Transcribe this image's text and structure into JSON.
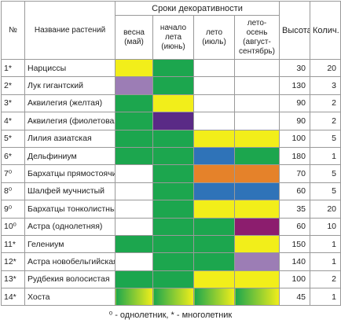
{
  "table": {
    "headers": {
      "num": "№",
      "name": "Название растений",
      "period": "Сроки декоративности",
      "height": "Высота",
      "count": "Колич.",
      "periods": [
        "весна\n(май)",
        "начало\nлета\n(июнь)",
        "лето\n(июль)",
        "лето-осень\n(август-\nсентябрь)"
      ]
    },
    "rows": [
      {
        "num": "1*",
        "name": "Нарциссы",
        "colors": [
          "#f2ee1a",
          "#1ca64e",
          null,
          null
        ],
        "height": "30",
        "count": "20"
      },
      {
        "num": "2*",
        "name": "Лук гигантский",
        "colors": [
          "#9c7db5",
          "#1ca64e",
          null,
          null
        ],
        "height": "130",
        "count": "3"
      },
      {
        "num": "3*",
        "name": "Аквилегия (желтая)",
        "colors": [
          "#1ca64e",
          "#f2ee1a",
          null,
          null
        ],
        "height": "90",
        "count": "2"
      },
      {
        "num": "4*",
        "name": "Аквилегия (фиолетовая)",
        "colors": [
          "#1ca64e",
          "#5a2a86",
          null,
          null
        ],
        "height": "90",
        "count": "2"
      },
      {
        "num": "5*",
        "name": "Лилия азиатская",
        "colors": [
          "#1ca64e",
          "#1ca64e",
          "#f2ee1a",
          "#f2ee1a"
        ],
        "height": "100",
        "count": "5"
      },
      {
        "num": "6*",
        "name": "Дельфиниум",
        "colors": [
          "#1ca64e",
          "#1ca64e",
          "#2f73b8",
          "#1ca64e"
        ],
        "height": "180",
        "count": "1"
      },
      {
        "num": "7⁰",
        "name": "Бархатцы прямостоячие",
        "colors": [
          null,
          "#1ca64e",
          "#e5822a",
          "#e5822a"
        ],
        "height": "70",
        "count": "5"
      },
      {
        "num": "8⁰",
        "name": "Шалфей мучнистый",
        "colors": [
          null,
          "#1ca64e",
          "#2f73b8",
          "#2f73b8"
        ],
        "height": "60",
        "count": "5"
      },
      {
        "num": "9⁰",
        "name": "Бархатцы тонколистные",
        "colors": [
          null,
          "#1ca64e",
          "#f2ee1a",
          "#f2ee1a"
        ],
        "height": "35",
        "count": "20"
      },
      {
        "num": "10⁰",
        "name": "Астра (однолетняя)",
        "colors": [
          null,
          "#1ca64e",
          "#1ca64e",
          "#8c1d6e"
        ],
        "height": "60",
        "count": "10"
      },
      {
        "num": "11*",
        "name": "Гелениум",
        "colors": [
          "#1ca64e",
          "#1ca64e",
          "#1ca64e",
          "#f2ee1a"
        ],
        "height": "150",
        "count": "1"
      },
      {
        "num": "12*",
        "name": "Астра новобельгийская",
        "colors": [
          null,
          "#1ca64e",
          "#1ca64e",
          "#9c7db5"
        ],
        "height": "140",
        "count": "1"
      },
      {
        "num": "13*",
        "name": "Рудбекия волосистая",
        "colors": [
          "#1ca64e",
          "#1ca64e",
          "#f2ee1a",
          "#f2ee1a"
        ],
        "height": "100",
        "count": "2"
      },
      {
        "num": "14*",
        "name": "Хоста",
        "colors": [
          [
            "#1ca64e",
            "#f2ee1a"
          ],
          [
            "#1ca64e",
            "#f2ee1a"
          ],
          [
            "#1ca64e",
            "#f2ee1a"
          ],
          [
            "#1ca64e",
            "#f2ee1a"
          ]
        ],
        "height": "45",
        "count": "1"
      }
    ],
    "footnote": "⁰ - однолетник, * - многолетник"
  }
}
